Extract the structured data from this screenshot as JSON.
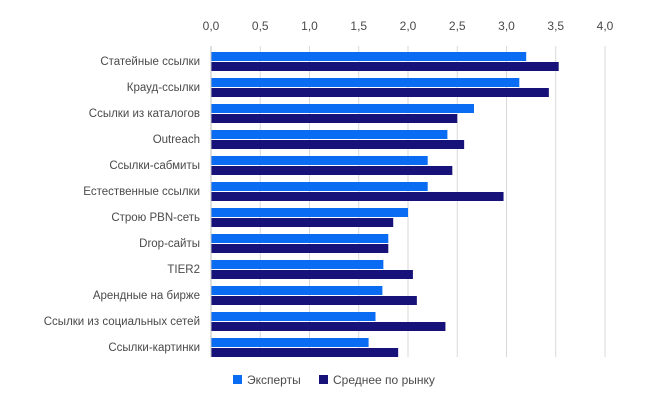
{
  "chart_data": {
    "type": "bar",
    "orientation": "horizontal",
    "title": "",
    "xlabel": "",
    "ylabel": "",
    "xlim": [
      0,
      4.0
    ],
    "x_ticks": [
      "0,0",
      "0,5",
      "1,0",
      "1,5",
      "2,0",
      "2,5",
      "3,0",
      "3,5",
      "4,0"
    ],
    "x_axis_position": "top",
    "grid": true,
    "legend_position": "bottom",
    "categories": [
      "Статейные ссылки",
      "Крауд-ссылки",
      "Ссылки из каталогов",
      "Outreach",
      "Ссылки-сабмиты",
      "Естественные ссылки",
      "Строю PBN-сеть",
      "Drop-сайты",
      "TIER2",
      "Арендные на бирже",
      "Ссылки из социальных сетей",
      "Ссылки-картинки"
    ],
    "series": [
      {
        "name": "Эксперты",
        "color": "#0a6cf2",
        "values": [
          3.2,
          3.13,
          2.67,
          2.4,
          2.2,
          2.2,
          2.0,
          1.8,
          1.75,
          1.74,
          1.67,
          1.6
        ]
      },
      {
        "name": "Среднее по рынку",
        "color": "#16127a",
        "values": [
          3.53,
          3.43,
          2.5,
          2.57,
          2.45,
          2.97,
          1.85,
          1.8,
          2.05,
          2.09,
          2.38,
          1.9
        ]
      }
    ]
  }
}
